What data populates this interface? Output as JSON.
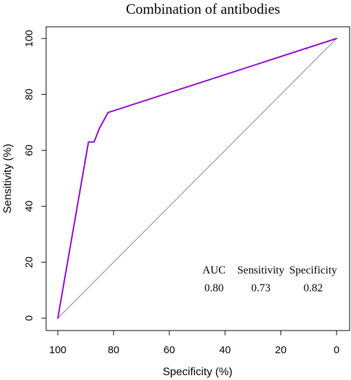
{
  "chart_data": {
    "type": "line",
    "title": "Combination of antibodies",
    "xlabel": "Specificity (%)",
    "ylabel": "Sensitivity (%)",
    "xlim": [
      100,
      0
    ],
    "ylim": [
      0,
      100
    ],
    "x_reversed": true,
    "xticks": [
      100,
      80,
      60,
      40,
      20,
      0
    ],
    "yticks": [
      0,
      20,
      40,
      60,
      80,
      100
    ],
    "grid": false,
    "series": [
      {
        "color": "#9400D3",
        "x": [
          100,
          89,
          87,
          85,
          82,
          0
        ],
        "y": [
          0,
          63,
          63,
          68,
          73.5,
          100
        ]
      }
    ],
    "reference_line": {
      "color": "#808080",
      "x": [
        100,
        0
      ],
      "y": [
        0,
        100
      ]
    },
    "stats": {
      "headers": [
        "AUC",
        "Sensitivity",
        "Specificity"
      ],
      "values": [
        "0.80",
        "0.73",
        "0.82"
      ]
    }
  }
}
